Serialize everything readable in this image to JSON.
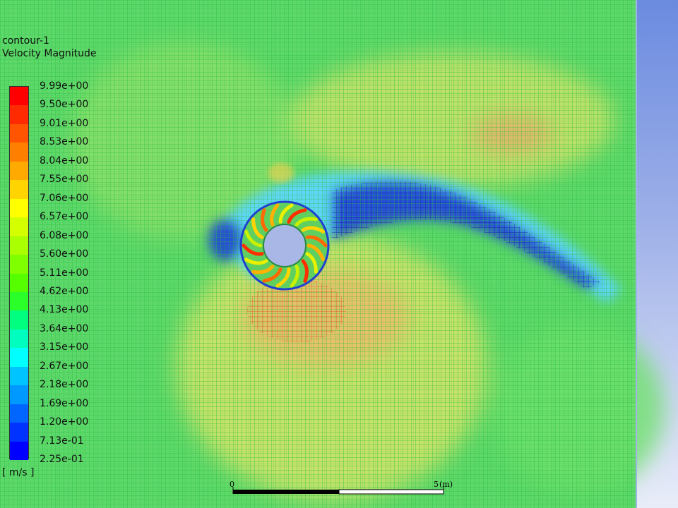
{
  "legend": {
    "name": "contour-1",
    "quantity": "Velocity Magnitude",
    "unit": "[ m/s ]",
    "levels": [
      "9.99e+00",
      "9.50e+00",
      "9.01e+00",
      "8.53e+00",
      "8.04e+00",
      "7.55e+00",
      "7.06e+00",
      "6.57e+00",
      "6.08e+00",
      "5.60e+00",
      "5.11e+00",
      "4.62e+00",
      "4.13e+00",
      "3.64e+00",
      "3.15e+00",
      "2.67e+00",
      "2.18e+00",
      "1.69e+00",
      "1.20e+00",
      "7.13e-01",
      "2.25e-01"
    ],
    "band_colors": [
      "#ff0000",
      "#ff2a00",
      "#ff5500",
      "#ff7f00",
      "#ffaa00",
      "#ffd400",
      "#ffff00",
      "#d4ff00",
      "#aaff00",
      "#7fff00",
      "#55ff00",
      "#2aff2a",
      "#00ff7f",
      "#00ffbf",
      "#00ffff",
      "#00c4ff",
      "#0099ff",
      "#0066ff",
      "#0033ff",
      "#0000ff"
    ]
  },
  "scale_bar": {
    "start": "0",
    "end": "5",
    "unit": "(m)"
  },
  "colors": {
    "background_top": "#6b8be0",
    "background_bottom": "#e9edf9",
    "mesh_base": "#3fd65a",
    "mesh_line": "#1fbf3a",
    "low_velocity": "#1a24c8",
    "high_velocity": "#ff2a00"
  },
  "icons": {
    "turbine": "cross-flow-turbine-icon"
  }
}
